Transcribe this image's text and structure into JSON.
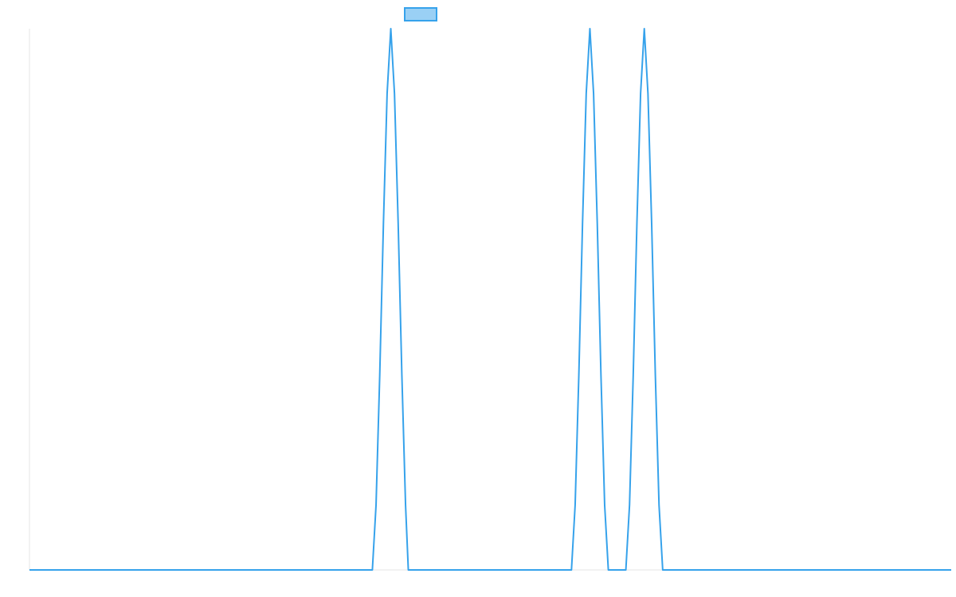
{
  "chart_data": {
    "type": "line",
    "title": "",
    "xlabel": "",
    "ylabel": "",
    "grid": false,
    "legend": {
      "placement": "top-center",
      "entries": [
        {
          "name": "",
          "color": "#36a2eb",
          "fill": "#9ad0f5"
        }
      ]
    },
    "xlim": [
      0,
      100
    ],
    "ylim": [
      0,
      1
    ],
    "series": [
      {
        "name": "",
        "color": "#36a2eb",
        "points": [
          [
            0,
            0
          ],
          [
            37.2,
            0
          ],
          [
            37.6,
            0.12
          ],
          [
            38.0,
            0.36
          ],
          [
            38.4,
            0.64
          ],
          [
            38.8,
            0.88
          ],
          [
            39.2,
            1.0
          ],
          [
            39.6,
            0.88
          ],
          [
            40.0,
            0.64
          ],
          [
            40.4,
            0.36
          ],
          [
            40.8,
            0.12
          ],
          [
            41.1,
            0
          ],
          [
            58.8,
            0
          ],
          [
            59.2,
            0.12
          ],
          [
            59.6,
            0.36
          ],
          [
            60.0,
            0.64
          ],
          [
            60.4,
            0.88
          ],
          [
            60.8,
            1.0
          ],
          [
            61.2,
            0.88
          ],
          [
            61.6,
            0.64
          ],
          [
            62.0,
            0.36
          ],
          [
            62.4,
            0.12
          ],
          [
            62.8,
            0
          ],
          [
            64.7,
            0
          ],
          [
            65.1,
            0.12
          ],
          [
            65.5,
            0.36
          ],
          [
            65.9,
            0.64
          ],
          [
            66.3,
            0.88
          ],
          [
            66.7,
            1.0
          ],
          [
            67.1,
            0.88
          ],
          [
            67.5,
            0.64
          ],
          [
            67.9,
            0.36
          ],
          [
            68.3,
            0.12
          ],
          [
            68.7,
            0
          ],
          [
            100,
            0
          ]
        ]
      }
    ]
  }
}
